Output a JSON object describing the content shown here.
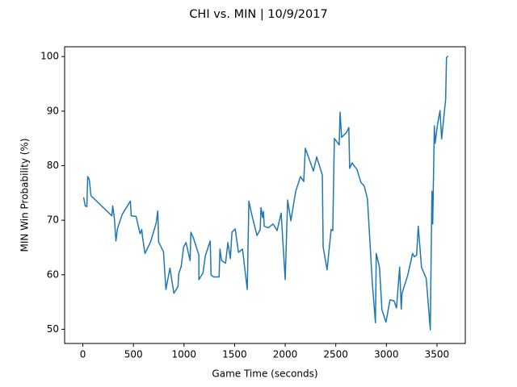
{
  "chart_data": {
    "type": "line",
    "title": "CHI vs. MIN | 10/9/2017",
    "x_label": "Game Time (seconds)",
    "y_label": "MIN Win Probability (%)",
    "xlim": [
      -180,
      3780
    ],
    "ylim": [
      47.4,
      101.8
    ],
    "xticks": [
      0,
      500,
      1000,
      1500,
      2000,
      2500,
      3000,
      3500
    ],
    "yticks": [
      50,
      60,
      70,
      80,
      90,
      100
    ],
    "series": [
      {
        "color": "#1f77b4",
        "x": [
          8,
          24,
          40,
          48,
          64,
          80,
          287,
          295,
          311,
          327,
          343,
          390,
          430,
          470,
          478,
          526,
          566,
          582,
          590,
          614,
          669,
          725,
          741,
          749,
          797,
          821,
          861,
          900,
          940,
          948,
          972,
          996,
          1020,
          1060,
          1068,
          1092,
          1147,
          1147,
          1187,
          1211,
          1259,
          1267,
          1291,
          1347,
          1355,
          1371,
          1410,
          1434,
          1458,
          1474,
          1506,
          1538,
          1578,
          1625,
          1641,
          1665,
          1721,
          1753,
          1761,
          1777,
          1785,
          1793,
          1833,
          1880,
          1920,
          1960,
          2000,
          2024,
          2056,
          2104,
          2151,
          2183,
          2199,
          2279,
          2311,
          2367,
          2375,
          2414,
          2454,
          2470,
          2486,
          2534,
          2542,
          2558,
          2606,
          2629,
          2637,
          2661,
          2709,
          2749,
          2781,
          2813,
          2861,
          2892,
          2900,
          2932,
          2956,
          2996,
          3036,
          3076,
          3100,
          3131,
          3147,
          3155,
          3211,
          3259,
          3275,
          3299,
          3315,
          3347,
          3394,
          3434,
          3450,
          3458,
          3474,
          3482,
          3506,
          3530,
          3546,
          3586,
          3594,
          3610
        ],
        "values": [
          74.2,
          72.6,
          72.5,
          78,
          77.4,
          74.5,
          70.8,
          72.6,
          70.5,
          66.2,
          68.5,
          71.1,
          72.3,
          73.5,
          70.8,
          70.7,
          67.5,
          68.3,
          66.9,
          63.9,
          66,
          69.5,
          71.7,
          66,
          64.2,
          57.3,
          61.2,
          56.6,
          57.8,
          60.2,
          61.5,
          65.1,
          65.9,
          62.6,
          67.8,
          66.8,
          63.6,
          59.1,
          60.3,
          63.5,
          66.2,
          60,
          59.6,
          59.6,
          64.7,
          62.6,
          62.1,
          65.9,
          63,
          67.8,
          68.4,
          64.1,
          64.7,
          57.3,
          73.5,
          71.4,
          67.2,
          68.3,
          72.3,
          70.5,
          71.6,
          68.9,
          68.6,
          69.3,
          68.1,
          71.3,
          59.1,
          73.7,
          69.9,
          75.3,
          78,
          77.1,
          83.2,
          79,
          81.6,
          78.3,
          65.1,
          60.9,
          68.3,
          68.1,
          85,
          83.8,
          89.8,
          85.2,
          86.1,
          87,
          79.5,
          80.5,
          79.3,
          76.9,
          76.3,
          73.9,
          58.5,
          51.2,
          63.9,
          61.4,
          53.6,
          51.3,
          55.4,
          55.2,
          53.9,
          61.4,
          53.7,
          56.6,
          59.9,
          63.9,
          63.3,
          63.6,
          68.9,
          61.4,
          59.3,
          49.9,
          75.3,
          69.3,
          87.3,
          84.1,
          87.6,
          90.1,
          84.9,
          92.2,
          99.8,
          100.1
        ]
      }
    ]
  }
}
